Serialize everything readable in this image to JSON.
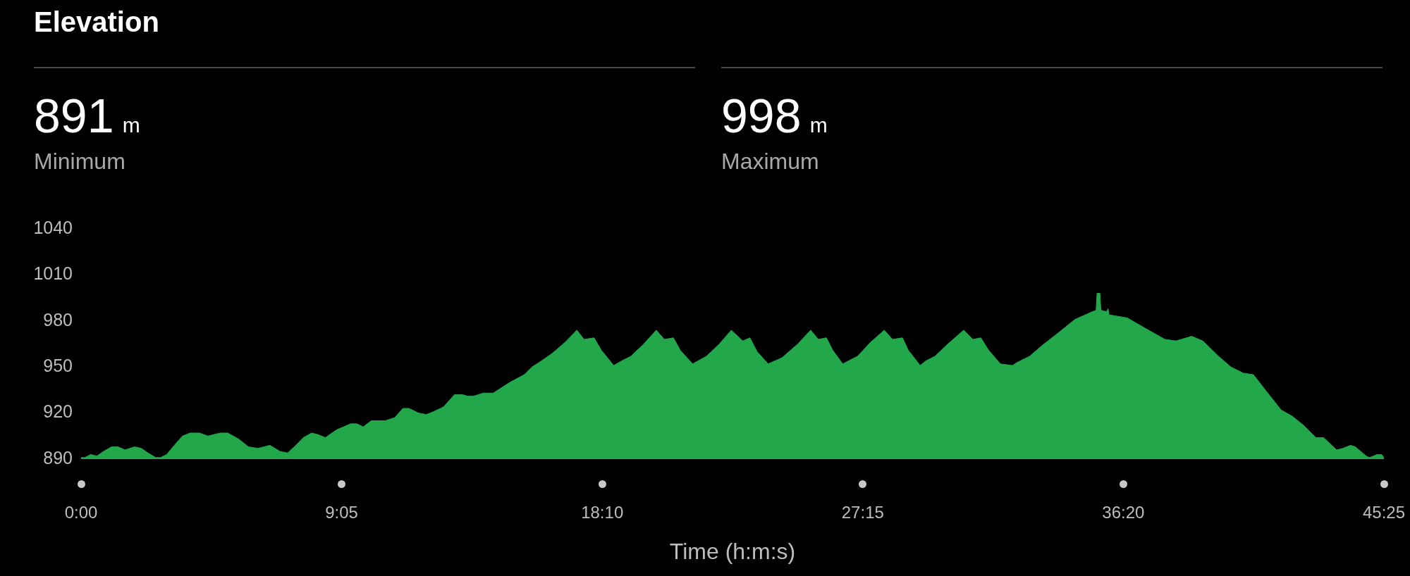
{
  "chart_data": {
    "type": "area",
    "title": "Elevation",
    "xlabel": "Time (h:m:s)",
    "annotations": [
      "891 m",
      "Minimum",
      "998 m",
      "Maximum"
    ],
    "x": [
      0,
      8,
      20,
      33,
      47,
      64,
      77,
      92,
      112,
      126,
      140,
      156,
      166,
      179,
      195,
      212,
      228,
      248,
      265,
      278,
      291,
      307,
      330,
      350,
      370,
      395,
      416,
      432,
      446,
      465,
      482,
      495,
      511,
      534,
      564,
      577,
      590,
      607,
      620,
      636,
      656,
      673,
      686,
      706,
      722,
      738,
      758,
      781,
      798,
      808,
      821,
      841,
      862,
      897,
      927,
      943,
      963,
      986,
      1012,
      1037,
      1052,
      1073,
      1088,
      1114,
      1131,
      1150,
      1177,
      1203,
      1220,
      1239,
      1253,
      1279,
      1308,
      1335,
      1360,
      1384,
      1399,
      1414,
      1437,
      1466,
      1499,
      1526,
      1542,
      1559,
      1572,
      1593,
      1624,
      1651,
      1680,
      1697,
      1718,
      1730,
      1755,
      1767,
      1786,
      1813,
      1846,
      1865,
      1882,
      1898,
      1923,
      1948,
      1958,
      1984,
      2010,
      2043,
      2079,
      2115,
      2123,
      2125,
      2131,
      2133,
      2145,
      2148,
      2150,
      2188,
      2227,
      2267,
      2290,
      2323,
      2346,
      2379,
      2405,
      2431,
      2452,
      2477,
      2510,
      2533,
      2557,
      2583,
      2599,
      2626,
      2639,
      2655,
      2665,
      2688,
      2695,
      2711,
      2720,
      2725
    ],
    "values": [
      891,
      891,
      893,
      892,
      895,
      898,
      898,
      896,
      898,
      897,
      894,
      891,
      891,
      893,
      899,
      905,
      907,
      907,
      905,
      906,
      907,
      907,
      903,
      898,
      897,
      899,
      895,
      894,
      898,
      904,
      907,
      906,
      904,
      909,
      913,
      913,
      911,
      915,
      915,
      915,
      917,
      923,
      923,
      920,
      919,
      921,
      924,
      932,
      932,
      931,
      931,
      933,
      933,
      940,
      945,
      950,
      954,
      959,
      966,
      974,
      968,
      969,
      961,
      951,
      954,
      957,
      965,
      974,
      968,
      969,
      961,
      952,
      957,
      965,
      974,
      967,
      969,
      960,
      952,
      956,
      965,
      974,
      968,
      969,
      961,
      952,
      957,
      966,
      974,
      968,
      969,
      961,
      951,
      954,
      957,
      965,
      974,
      968,
      969,
      961,
      952,
      951,
      953,
      957,
      964,
      972,
      981,
      986,
      987,
      998,
      998,
      987,
      986,
      988,
      984,
      982,
      975,
      968,
      967,
      970,
      967,
      957,
      950,
      946,
      945,
      935,
      922,
      918,
      912,
      904,
      904,
      896,
      897,
      899,
      898,
      892,
      891,
      893,
      893,
      891
    ],
    "color": "#22a84b",
    "xlim": [
      0,
      2725
    ],
    "xticks": [
      {
        "value": 0,
        "label": "0:00"
      },
      {
        "value": 545,
        "label": "9:05"
      },
      {
        "value": 1090,
        "label": "18:10"
      },
      {
        "value": 1635,
        "label": "27:15"
      },
      {
        "value": 2180,
        "label": "36:20"
      },
      {
        "value": 2725,
        "label": "45:25"
      }
    ],
    "ylim": [
      890,
      1040
    ],
    "yticks": [
      890,
      920,
      950,
      980,
      1010,
      1040
    ]
  }
}
